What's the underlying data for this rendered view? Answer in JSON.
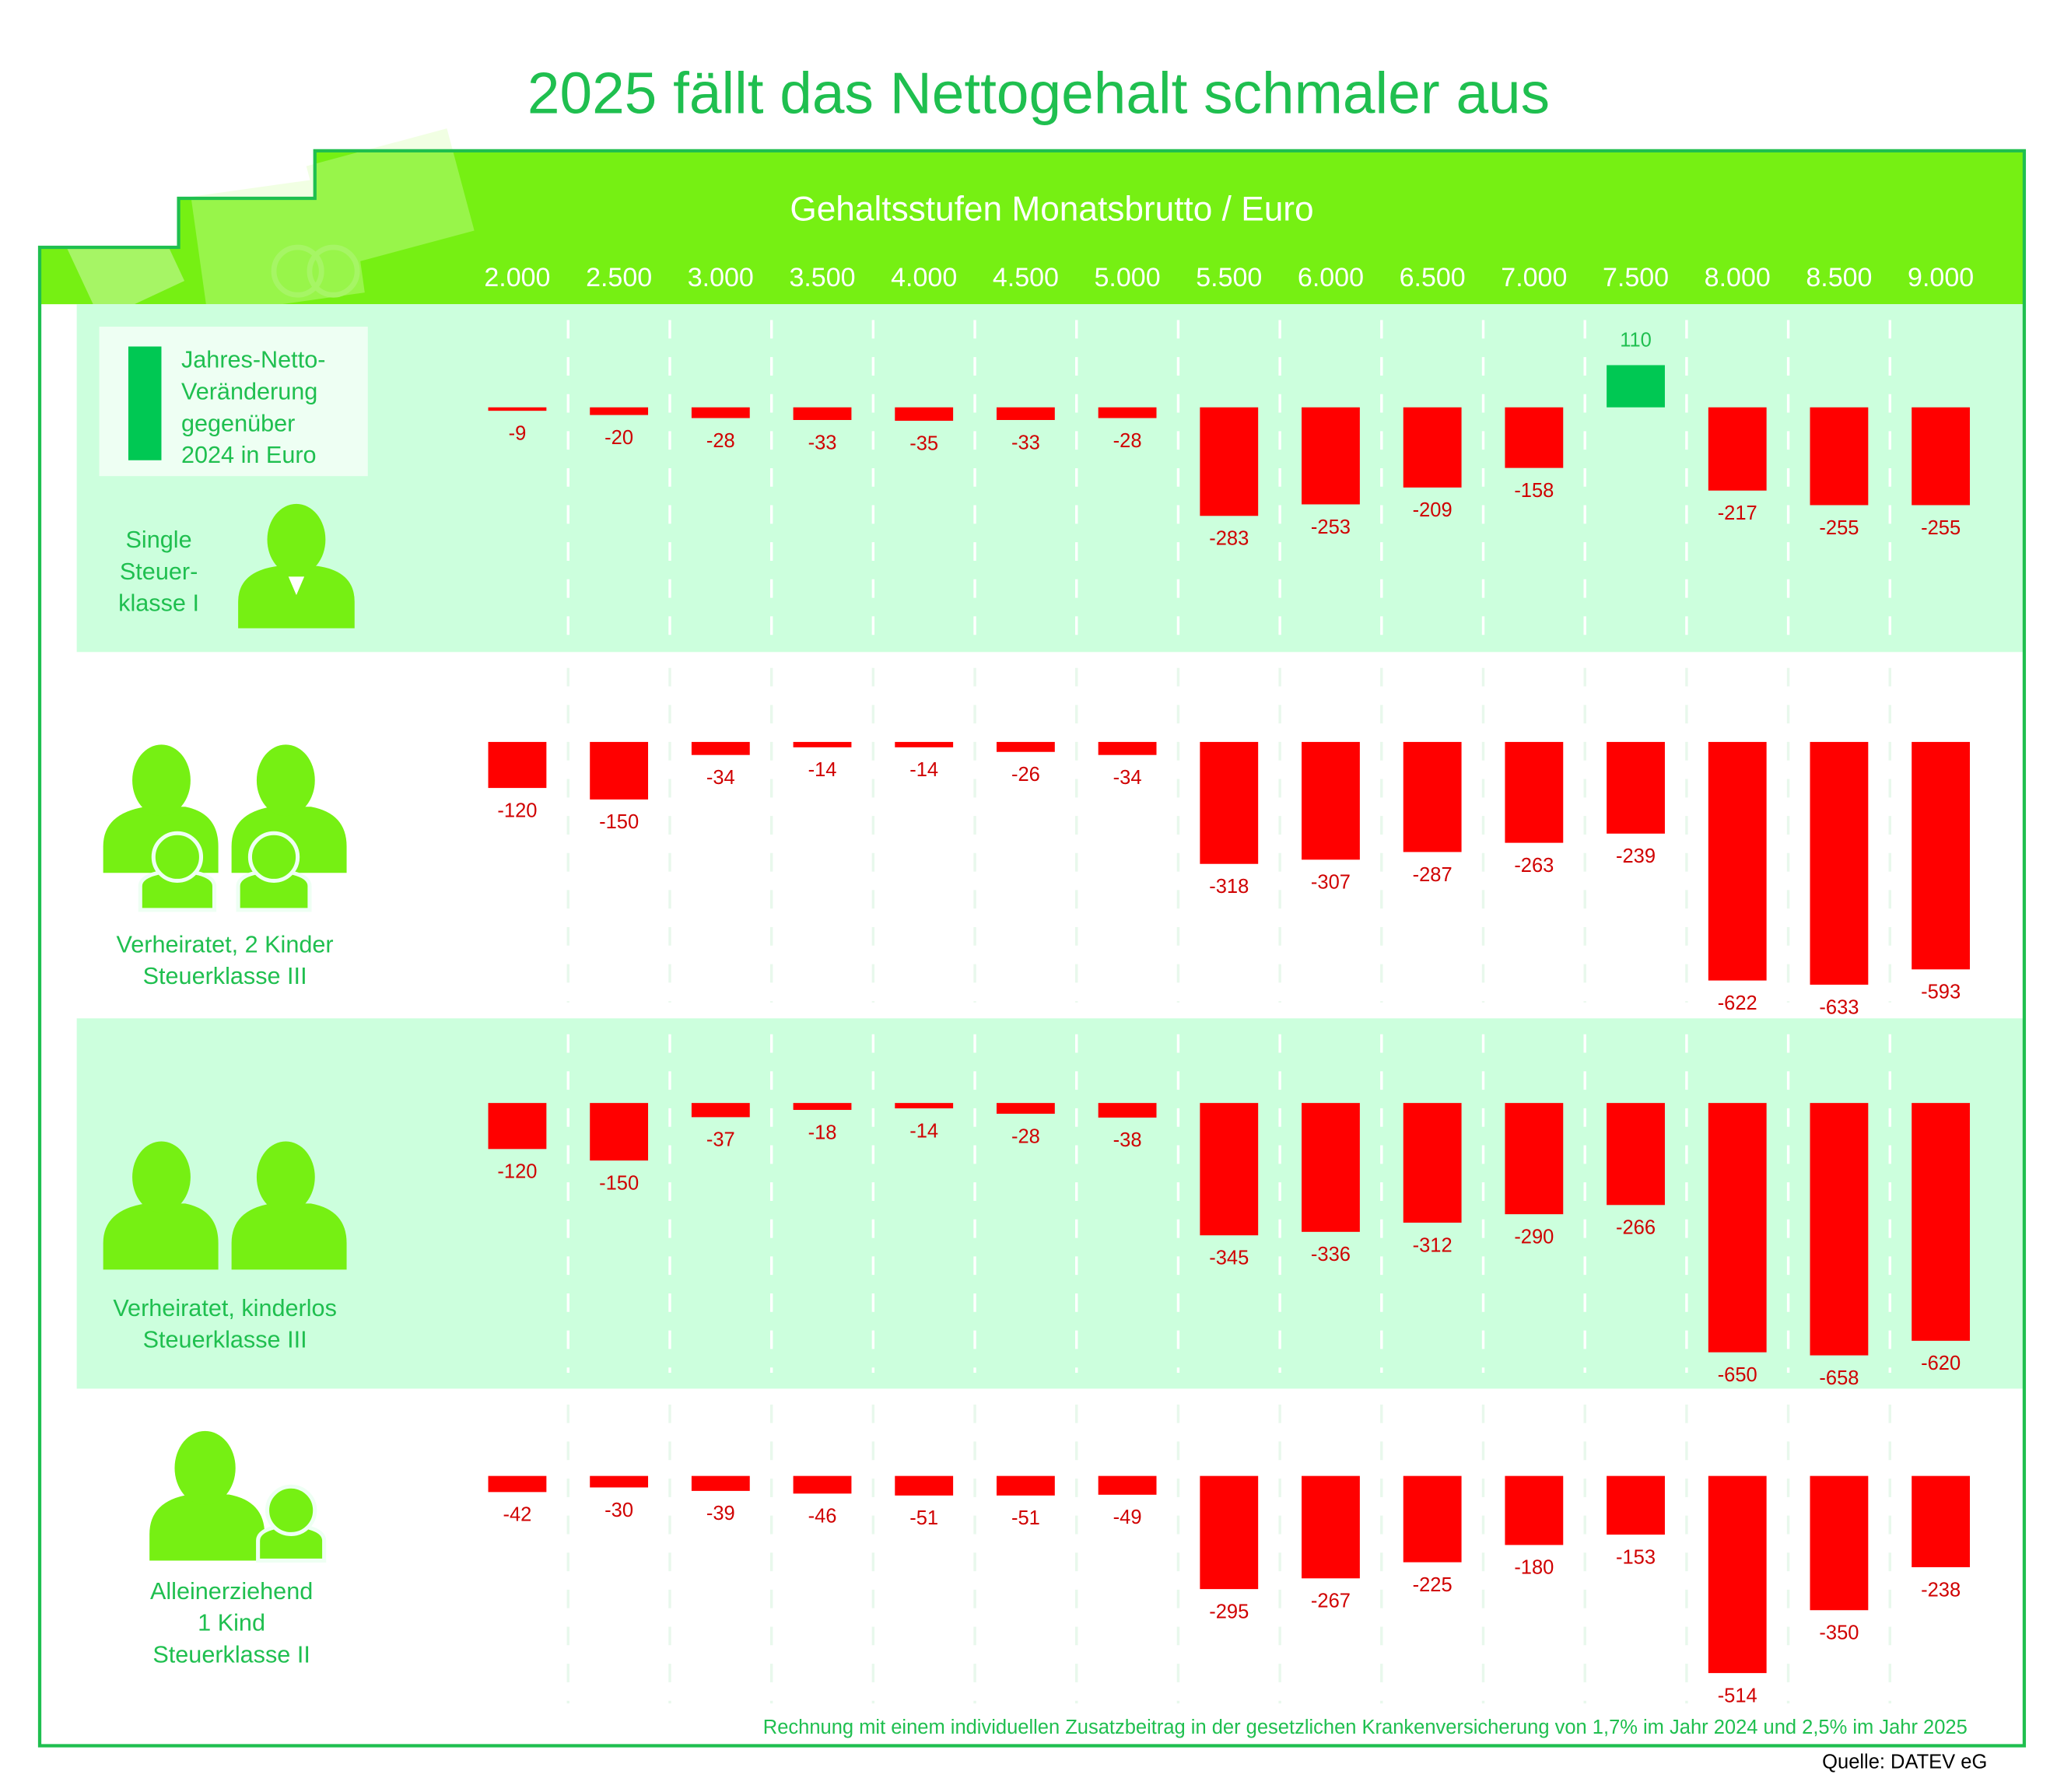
{
  "chart_data": {
    "type": "bar",
    "title": "2025 fällt das Nettogehalt schmaler aus",
    "subtitle": "Gehaltsstufen Monatsbrutto / Euro",
    "legend_text": "Jahres-Netto-\nVeränderung\ngegenüber\n2024 in Euro",
    "categories": [
      "2.000",
      "2.500",
      "3.000",
      "3.500",
      "4.000",
      "4.500",
      "5.000",
      "5.500",
      "6.000",
      "6.500",
      "7.000",
      "7.500",
      "8.000",
      "8.500",
      "9.000"
    ],
    "color": "#ff0000",
    "positive_color": "#00c853",
    "series": [
      {
        "name": "Single\nSteuer-\nklasse I",
        "values": [
          -9,
          -20,
          -28,
          -33,
          -35,
          -33,
          -28,
          -283,
          -253,
          -209,
          -158,
          110,
          -217,
          -255,
          -255
        ]
      },
      {
        "name": "Verheiratet, 2 Kinder\nSteuerklasse III",
        "values": [
          -120,
          -150,
          -34,
          -14,
          -14,
          -26,
          -34,
          -318,
          -307,
          -287,
          -263,
          -239,
          -622,
          -633,
          -593
        ]
      },
      {
        "name": "Verheiratet, kinderlos\nSteuerklasse III",
        "values": [
          -120,
          -150,
          -37,
          -18,
          -14,
          -28,
          -38,
          -345,
          -336,
          -312,
          -290,
          -266,
          -650,
          -658,
          -620
        ]
      },
      {
        "name": "Alleinerziehend\n1 Kind\nSteuerklasse II",
        "values": [
          -42,
          -30,
          -39,
          -46,
          -51,
          -51,
          -49,
          -295,
          -267,
          -225,
          -180,
          -153,
          -514,
          -350,
          -238
        ]
      }
    ],
    "footnote": "Rechnung mit einem individuellen Zusatzbeitrag in der gesetzlichen Krankenversicherung von 1,7% im Jahr 2024 und 2,5% im Jahr 2025",
    "source": "Quelle: DATEV eG"
  }
}
